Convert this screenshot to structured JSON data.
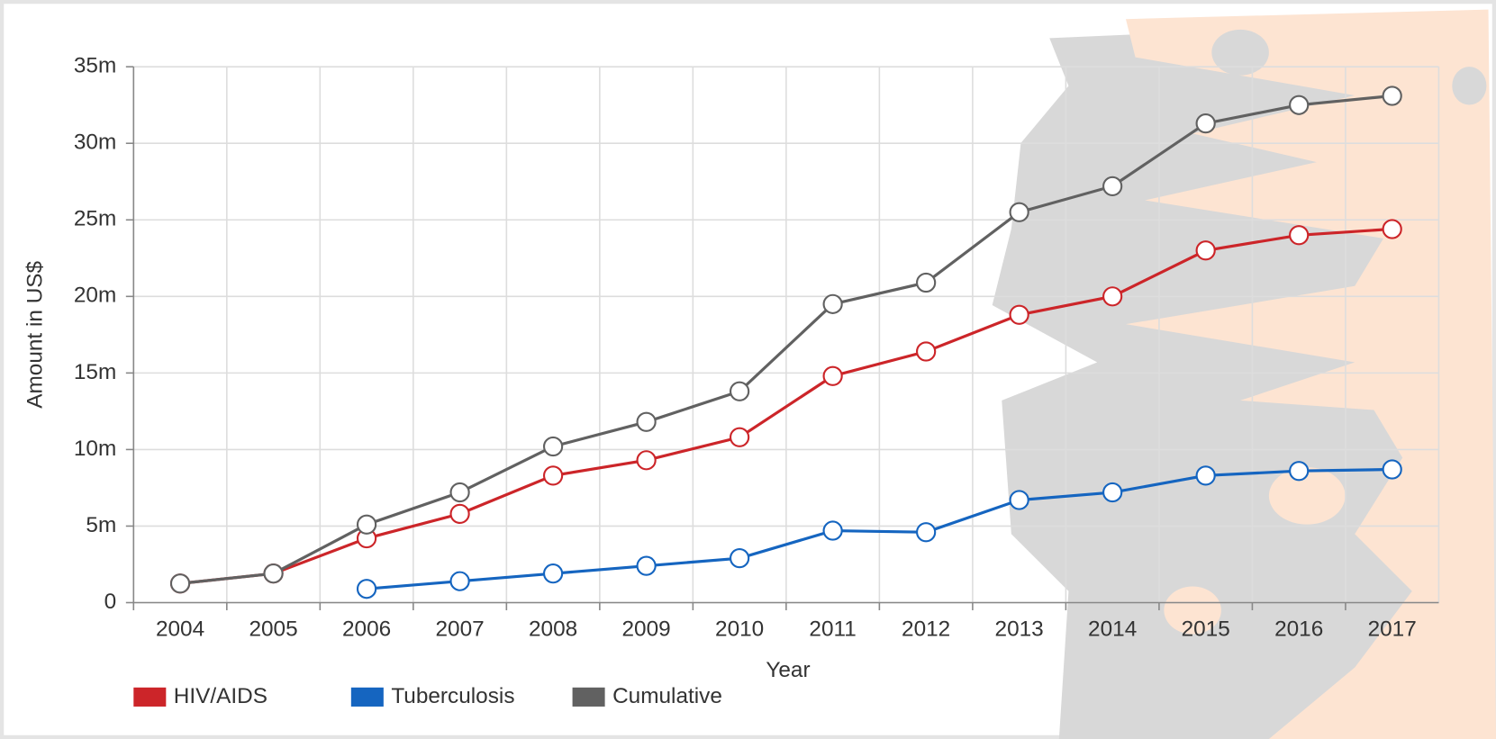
{
  "chart_data": {
    "type": "line",
    "x_label": "Year",
    "y_label": "Amount in US$",
    "categories": [
      "2004",
      "2005",
      "2006",
      "2007",
      "2008",
      "2009",
      "2010",
      "2011",
      "2012",
      "2013",
      "2014",
      "2015",
      "2016",
      "2017"
    ],
    "series": [
      {
        "name": "HIV/AIDS",
        "color": "#cc2529",
        "values": [
          1250000,
          1900000,
          4200000,
          5800000,
          8300000,
          9300000,
          10800000,
          14800000,
          16400000,
          18800000,
          20000000,
          23000000,
          24000000,
          24400000
        ]
      },
      {
        "name": "Tuberculosis",
        "color": "#1565c0",
        "values": [
          null,
          null,
          900000,
          1400000,
          1900000,
          2400000,
          2900000,
          4700000,
          4600000,
          6700000,
          7200000,
          8300000,
          8600000,
          8700000
        ]
      },
      {
        "name": "Cumulative",
        "color": "#616161",
        "values": [
          1250000,
          1900000,
          5100000,
          7200000,
          10200000,
          11800000,
          13800000,
          19500000,
          20900000,
          25500000,
          27200000,
          31300000,
          32500000,
          33100000
        ]
      }
    ],
    "ylim": [
      0,
      35000000
    ],
    "yticks": [
      0,
      {
        "value": 5000000,
        "label": "5m"
      },
      {
        "value": 10000000,
        "label": "10m"
      },
      {
        "value": 15000000,
        "label": "15m"
      },
      {
        "value": 20000000,
        "label": "20m"
      },
      {
        "value": 25000000,
        "label": "25m"
      },
      {
        "value": 30000000,
        "label": "30m"
      },
      {
        "value": 35000000,
        "label": "35m"
      }
    ],
    "grid": true,
    "legend": "bottom-left"
  }
}
